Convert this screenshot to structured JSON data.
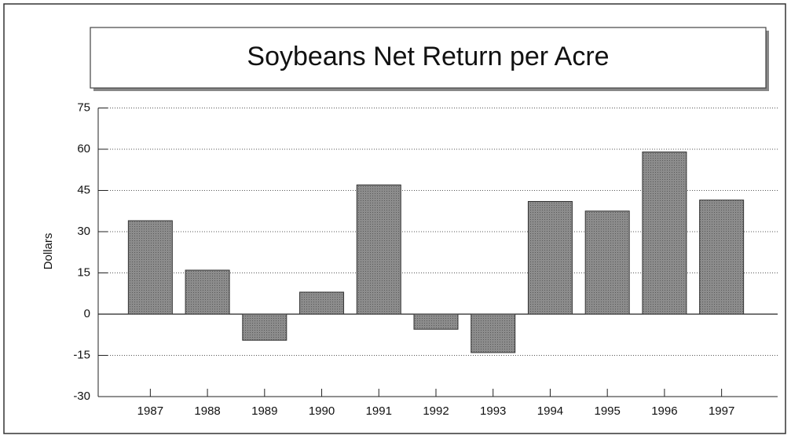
{
  "chart_data": {
    "type": "bar",
    "title": "Soybeans Net Return per Acre",
    "y_label": "Dollars",
    "categories": [
      "1987",
      "1988",
      "1989",
      "1990",
      "1991",
      "1992",
      "1993",
      "1994",
      "1995",
      "1996",
      "1997"
    ],
    "values": [
      34,
      16,
      -9.5,
      8,
      47,
      -5.5,
      -14,
      41,
      37.5,
      59,
      41.5
    ],
    "color": "#8c8c8c",
    "ylim": [
      -30,
      75
    ],
    "yticks": [
      -30,
      -15,
      0,
      15,
      30,
      45,
      60,
      75
    ],
    "grid": true
  }
}
